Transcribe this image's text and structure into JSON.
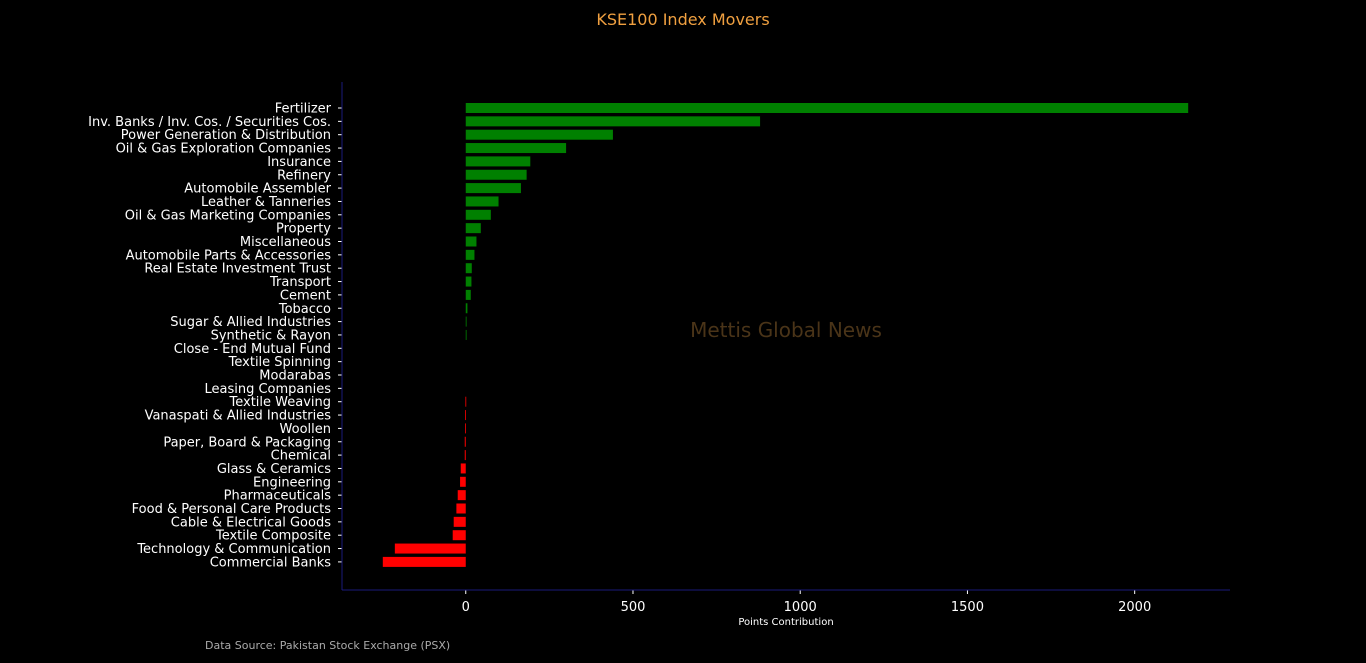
{
  "chart_data": {
    "type": "bar",
    "orientation": "horizontal",
    "title": "KSE100 Index Movers",
    "xlabel": "Points Contribution",
    "ylabel": "",
    "xlim": [
      -370,
      2285
    ],
    "xticks": [
      0,
      500,
      1000,
      1500,
      2000
    ],
    "grid": false,
    "colors": {
      "positive": "#008000",
      "negative": "#ff0000",
      "title": "#f0a040",
      "axis": "#1a1a7a",
      "text": "#ffffff",
      "background": "#000000"
    },
    "categories": [
      "Fertilizer",
      "Inv. Banks / Inv. Cos. / Securities Cos.",
      "Power Generation & Distribution",
      "Oil & Gas Exploration Companies",
      "Insurance",
      "Refinery",
      "Automobile Assembler",
      "Leather & Tanneries",
      "Oil & Gas Marketing Companies",
      "Property",
      "Miscellaneous",
      "Automobile Parts & Accessories",
      "Real Estate Investment Trust",
      "Transport",
      "Cement",
      "Tobacco",
      "Sugar & Allied Industries",
      "Synthetic & Rayon",
      "Close - End Mutual Fund",
      "Textile Spinning",
      "Modarabas",
      "Leasing Companies",
      "Textile Weaving",
      "Vanaspati & Allied Industries",
      "Woollen",
      "Paper, Board & Packaging",
      "Chemical",
      "Glass & Ceramics",
      "Engineering",
      "Pharmaceuticals",
      "Food & Personal Care Products",
      "Cable & Electrical Goods",
      "Textile Composite",
      "Technology & Communication",
      "Commercial Banks"
    ],
    "values": [
      2160,
      880,
      440,
      300,
      193,
      182,
      165,
      98,
      75,
      45,
      32,
      26,
      18,
      17,
      15,
      5,
      2,
      1,
      0,
      0,
      0,
      0,
      -1,
      -2,
      -2,
      -3,
      -3,
      -15,
      -17,
      -24,
      -28,
      -36,
      -39,
      -212,
      -248
    ]
  },
  "watermark": "Mettis Global News",
  "source": "Data Source: Pakistan Stock Exchange (PSX)"
}
